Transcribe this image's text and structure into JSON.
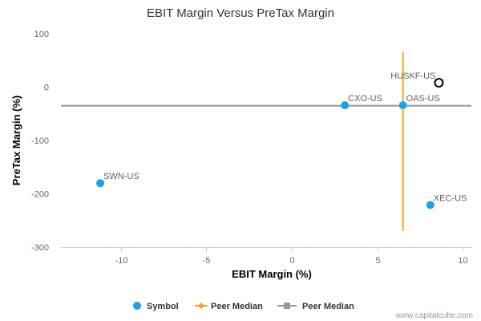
{
  "chart_data": {
    "type": "scatter",
    "title": "EBIT Margin Versus PreTax Margin",
    "xlabel": "EBIT Margin (%)",
    "ylabel": "PreTax Margin (%)",
    "xlim": [
      -13.5,
      10.5
    ],
    "ylim": [
      -300,
      100
    ],
    "x_ticks": [
      -10,
      -5,
      0,
      5,
      10
    ],
    "y_ticks": [
      100,
      0,
      -100,
      -200,
      -300
    ],
    "grid": false,
    "points": [
      {
        "label": "HUSKF-US",
        "x": 8.6,
        "y": 8,
        "highlight": true
      },
      {
        "label": "CXO-US",
        "x": 3.1,
        "y": -34
      },
      {
        "label": "OAS-US",
        "x": 6.5,
        "y": -34
      },
      {
        "label": "SWN-US",
        "x": -11.2,
        "y": -180
      },
      {
        "label": "XEC-US",
        "x": 8.1,
        "y": -221
      }
    ],
    "peer_median_x": {
      "value": 6.5,
      "y_range": [
        -270,
        65
      ]
    },
    "peer_median_y": {
      "value": -35
    },
    "legend": [
      {
        "label": "Symbol",
        "marker": "circle",
        "color": "#1aa3e8"
      },
      {
        "label": "Peer Median",
        "marker": "diamond",
        "color": "#f5a623"
      },
      {
        "label": "Peer Median",
        "marker": "square",
        "color": "#999999"
      }
    ],
    "legend_position": "bottom",
    "colors": {
      "point": "#1aa3e8",
      "median_x": "#f5a623",
      "median_y": "#999999",
      "highlight": "#000000"
    }
  },
  "credit": "www.capitalcube.com"
}
